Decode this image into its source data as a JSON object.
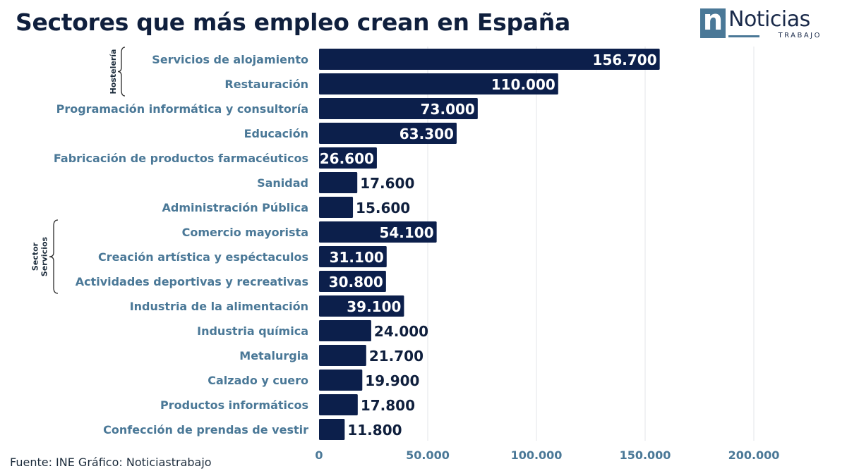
{
  "title": "Sectores que más empleo crean en España",
  "logo": {
    "mark_letter": "n",
    "word": "Noticias",
    "sub": "TRABAJO"
  },
  "source": "Fuente: INE Gráfico: Noticiastrabajo",
  "colors": {
    "bar": "#0c1f4b",
    "category_label": "#4a7897",
    "value_inside": "#ffffff",
    "value_outside": "#0f1f3d",
    "grid": "#e3e6ea",
    "title": "#0f1f3d"
  },
  "groups": [
    {
      "label": "Hostelería",
      "lines": [
        "Hostelería"
      ],
      "from_index": 0,
      "to_index": 1
    },
    {
      "label": "Sector Servicios",
      "lines": [
        "Sector",
        "Servicios"
      ],
      "from_index": 7,
      "to_index": 9
    }
  ],
  "chart_data": {
    "type": "bar",
    "orientation": "horizontal",
    "title": "Sectores que más empleo crean en España",
    "xlabel": "",
    "ylabel": "",
    "xlim": [
      0,
      200000
    ],
    "x_ticks": [
      0,
      50000,
      100000,
      150000,
      200000
    ],
    "x_tick_labels": [
      "0",
      "50.000",
      "100.000",
      "150.000",
      "200.000"
    ],
    "grid": true,
    "categories": [
      "Servicios de alojamiento",
      "Restauración",
      "Programación informática y consultoría",
      "Educación",
      "Fabricación de productos farmacéuticos",
      "Sanidad",
      "Administración Pública",
      "Comercio mayorista",
      "Creación artística y espéctaculos",
      "Actividades deportivas y recreativas",
      "Industria de la alimentación",
      "Industria química",
      "Metalurgia",
      "Calzado y cuero",
      "Productos informáticos",
      "Confección de prendas de vestir"
    ],
    "values": [
      156700,
      110000,
      73000,
      63300,
      26600,
      17600,
      15600,
      54100,
      31100,
      30800,
      39100,
      24000,
      21700,
      19900,
      17800,
      11800
    ],
    "value_labels": [
      "156.700",
      "110.000",
      "73.000",
      "63.300",
      "26.600",
      "17.600",
      "15.600",
      "54.100",
      "31.100",
      "30.800",
      "39.100",
      "24.000",
      "21.700",
      "19.900",
      "17.800",
      "11.800"
    ],
    "value_label_inside": [
      true,
      true,
      true,
      true,
      true,
      false,
      false,
      true,
      true,
      true,
      true,
      false,
      false,
      false,
      false,
      false
    ]
  }
}
